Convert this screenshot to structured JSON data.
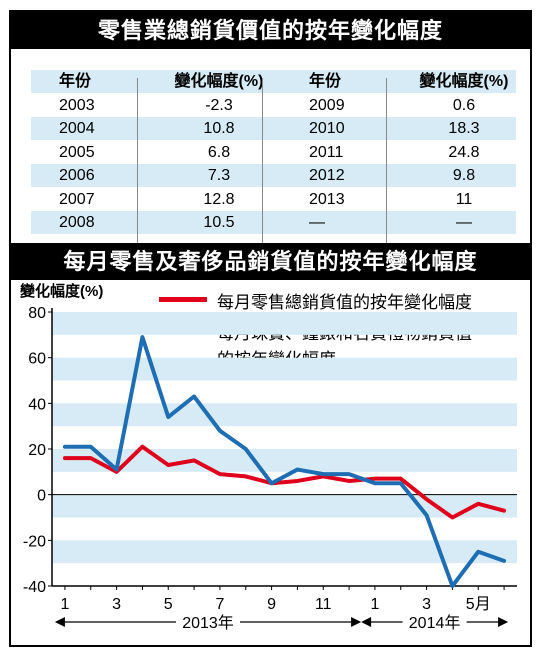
{
  "table": {
    "title": "零售業總銷貨價值的按年變化幅度",
    "headers": [
      "年份",
      "變化幅度(%)",
      "年份",
      "變化幅度(%)"
    ],
    "rows": [
      [
        "2003",
        "-2.3",
        "2009",
        "0.6"
      ],
      [
        "2004",
        "10.8",
        "2010",
        "18.3"
      ],
      [
        "2005",
        "6.8",
        "2011",
        "24.8"
      ],
      [
        "2006",
        "7.3",
        "2012",
        "9.8"
      ],
      [
        "2007",
        "12.8",
        "2013",
        "11"
      ],
      [
        "2008",
        "10.5",
        "—",
        "—"
      ]
    ]
  },
  "colors": {
    "red": "#e0001b",
    "blue": "#1e6eb4",
    "band": "#d6ebf5"
  },
  "chart_data": {
    "type": "line",
    "title": "每月零售及奢侈品銷貨值的按年變化幅度",
    "ylabel": "變化幅度(%)",
    "ylim": [
      -40,
      80
    ],
    "yticks": [
      80,
      60,
      40,
      20,
      0,
      -20,
      -40
    ],
    "grid": "alternating horizontal bands",
    "legend_position": "top-right",
    "x_tick_labels": [
      "1",
      "3",
      "5",
      "7",
      "9",
      "11",
      "1",
      "3",
      "5月"
    ],
    "x_tick_months": [
      1,
      3,
      5,
      7,
      9,
      11,
      13,
      15,
      17
    ],
    "year_labels": [
      "2013年",
      "2014年"
    ],
    "x": [
      1,
      2,
      3,
      4,
      5,
      6,
      7,
      8,
      9,
      10,
      11,
      12,
      13,
      14,
      15,
      16,
      17,
      18
    ],
    "series": [
      {
        "name": "每月零售總銷貨值的按年變化幅度",
        "color": "#e0001b",
        "values": [
          16,
          16,
          10,
          21,
          13,
          15,
          9,
          8,
          5,
          6,
          8,
          6,
          7,
          7,
          -2,
          -10,
          -4,
          -7
        ]
      },
      {
        "name": "每月珠寶、鐘錶和名貴禮物銷貨值的按年變化幅度",
        "color": "#1e6eb4",
        "values": [
          21,
          21,
          11,
          69,
          34,
          43,
          28,
          20,
          5,
          11,
          9,
          9,
          5,
          5,
          -9,
          -40,
          -25,
          -29
        ]
      }
    ],
    "legend_lines": [
      [
        "每月零售總銷貨值的按年變化幅度"
      ],
      [
        "每月珠寶、鐘錶和名貴禮物銷貨值",
        "的按年變化幅度"
      ]
    ]
  }
}
